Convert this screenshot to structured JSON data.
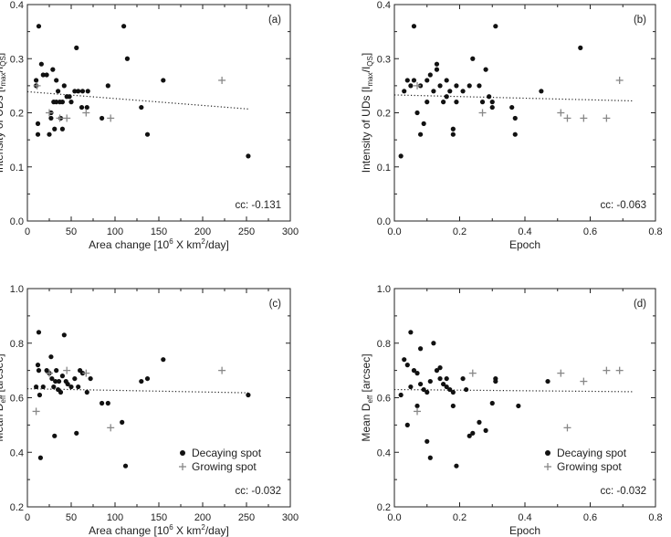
{
  "chart_data": [
    {
      "type": "scatter",
      "panel_label": "(a)",
      "xlabel_pre": "Area change [10",
      "xlabel_sup1": "6",
      "xlabel_mid": " X km",
      "xlabel_sup2": "2",
      "xlabel_post": "/day]",
      "ylabel_pre": "Intensity of UDs [I",
      "ylabel_sub1": "max",
      "ylabel_mid": "/I",
      "ylabel_sub2": "QS",
      "ylabel_post": "]",
      "xlim": [
        0,
        300
      ],
      "ylim": [
        0.0,
        0.4
      ],
      "xticks": [
        "0",
        "50",
        "100",
        "150",
        "200",
        "250",
        "300"
      ],
      "yticks": [
        "0.0",
        "0.1",
        "0.2",
        "0.3",
        "0.4"
      ],
      "cc": "cc: -0.131",
      "fit": {
        "x": [
          0,
          252
        ],
        "y": [
          0.239,
          0.207
        ]
      },
      "decaying": [
        [
          10,
          0.26
        ],
        [
          10,
          0.25
        ],
        [
          13,
          0.36
        ],
        [
          12,
          0.18
        ],
        [
          12,
          0.16
        ],
        [
          16,
          0.29
        ],
        [
          18,
          0.27
        ],
        [
          22,
          0.27
        ],
        [
          25,
          0.16
        ],
        [
          27,
          0.2
        ],
        [
          27,
          0.19
        ],
        [
          29,
          0.28
        ],
        [
          30,
          0.22
        ],
        [
          31,
          0.17
        ],
        [
          33,
          0.26
        ],
        [
          33,
          0.22
        ],
        [
          35,
          0.24
        ],
        [
          37,
          0.22
        ],
        [
          38,
          0.19
        ],
        [
          40,
          0.22
        ],
        [
          40,
          0.17
        ],
        [
          42,
          0.25
        ],
        [
          45,
          0.23
        ],
        [
          48,
          0.23
        ],
        [
          50,
          0.22
        ],
        [
          54,
          0.24
        ],
        [
          56,
          0.32
        ],
        [
          58,
          0.24
        ],
        [
          62,
          0.21
        ],
        [
          63,
          0.24
        ],
        [
          68,
          0.21
        ],
        [
          69,
          0.24
        ],
        [
          85,
          0.19
        ],
        [
          92,
          0.25
        ],
        [
          110,
          0.36
        ],
        [
          114,
          0.3
        ],
        [
          130,
          0.21
        ],
        [
          137,
          0.16
        ],
        [
          155,
          0.26
        ],
        [
          252,
          0.12
        ]
      ],
      "growing": [
        [
          11,
          0.25
        ],
        [
          25,
          0.2
        ],
        [
          37,
          0.19
        ],
        [
          45,
          0.19
        ],
        [
          67,
          0.2
        ],
        [
          95,
          0.19
        ],
        [
          222,
          0.26
        ]
      ]
    },
    {
      "type": "scatter",
      "panel_label": "(b)",
      "xlabel": "Epoch",
      "ylabel_pre": "Intensity of UDs [I",
      "ylabel_sub1": "max",
      "ylabel_mid": "/I",
      "ylabel_sub2": "QS",
      "ylabel_post": "]",
      "xlim": [
        0.0,
        0.8
      ],
      "ylim": [
        0.0,
        0.4
      ],
      "xticks": [
        "0.0",
        "0.2",
        "0.4",
        "0.6",
        "0.8"
      ],
      "yticks": [
        "0.0",
        "0.1",
        "0.2",
        "0.3",
        "0.4"
      ],
      "cc": "cc: -0.063",
      "fit": {
        "x": [
          0.0,
          0.73
        ],
        "y": [
          0.233,
          0.222
        ]
      },
      "decaying": [
        [
          0.02,
          0.12
        ],
        [
          0.03,
          0.24
        ],
        [
          0.04,
          0.26
        ],
        [
          0.05,
          0.25
        ],
        [
          0.06,
          0.36
        ],
        [
          0.06,
          0.26
        ],
        [
          0.07,
          0.2
        ],
        [
          0.08,
          0.16
        ],
        [
          0.08,
          0.25
        ],
        [
          0.09,
          0.18
        ],
        [
          0.1,
          0.26
        ],
        [
          0.1,
          0.22
        ],
        [
          0.11,
          0.27
        ],
        [
          0.12,
          0.24
        ],
        [
          0.13,
          0.29
        ],
        [
          0.13,
          0.28
        ],
        [
          0.14,
          0.25
        ],
        [
          0.15,
          0.22
        ],
        [
          0.16,
          0.26
        ],
        [
          0.16,
          0.23
        ],
        [
          0.17,
          0.24
        ],
        [
          0.18,
          0.17
        ],
        [
          0.18,
          0.16
        ],
        [
          0.19,
          0.22
        ],
        [
          0.19,
          0.25
        ],
        [
          0.21,
          0.24
        ],
        [
          0.24,
          0.3
        ],
        [
          0.26,
          0.25
        ],
        [
          0.27,
          0.22
        ],
        [
          0.28,
          0.28
        ],
        [
          0.29,
          0.23
        ],
        [
          0.3,
          0.22
        ],
        [
          0.3,
          0.21
        ],
        [
          0.31,
          0.36
        ],
        [
          0.36,
          0.21
        ],
        [
          0.37,
          0.19
        ],
        [
          0.37,
          0.16
        ],
        [
          0.45,
          0.24
        ],
        [
          0.57,
          0.32
        ],
        [
          0.23,
          0.25
        ]
      ],
      "growing": [
        [
          0.07,
          0.25
        ],
        [
          0.27,
          0.2
        ],
        [
          0.51,
          0.2
        ],
        [
          0.53,
          0.19
        ],
        [
          0.58,
          0.19
        ],
        [
          0.65,
          0.19
        ],
        [
          0.69,
          0.26
        ]
      ]
    },
    {
      "type": "scatter",
      "panel_label": "(c)",
      "xlabel_pre": "Area change [10",
      "xlabel_sup1": "6",
      "xlabel_mid": " X km",
      "xlabel_sup2": "2",
      "xlabel_post": "/day]",
      "ylabel_pre": "Mean D",
      "ylabel_sub1": "eff",
      "ylabel_post": " [arcsec]",
      "xlim": [
        0,
        300
      ],
      "ylim": [
        0.2,
        1.0
      ],
      "xticks": [
        "0",
        "50",
        "100",
        "150",
        "200",
        "250",
        "300"
      ],
      "yticks": [
        "0.2",
        "0.4",
        "0.6",
        "0.8",
        "1.0"
      ],
      "cc": "cc: -0.032",
      "legend": {
        "decaying": "Decaying spot",
        "growing": "Growing spot"
      },
      "fit": {
        "x": [
          0,
          252
        ],
        "y": [
          0.633,
          0.618
        ]
      },
      "decaying": [
        [
          10,
          0.64
        ],
        [
          12,
          0.72
        ],
        [
          13,
          0.84
        ],
        [
          13,
          0.7
        ],
        [
          14,
          0.61
        ],
        [
          15,
          0.38
        ],
        [
          18,
          0.64
        ],
        [
          22,
          0.7
        ],
        [
          25,
          0.69
        ],
        [
          27,
          0.75
        ],
        [
          28,
          0.67
        ],
        [
          30,
          0.64
        ],
        [
          31,
          0.46
        ],
        [
          32,
          0.66
        ],
        [
          33,
          0.7
        ],
        [
          35,
          0.63
        ],
        [
          36,
          0.66
        ],
        [
          38,
          0.62
        ],
        [
          40,
          0.68
        ],
        [
          42,
          0.83
        ],
        [
          44,
          0.66
        ],
        [
          46,
          0.65
        ],
        [
          50,
          0.64
        ],
        [
          54,
          0.67
        ],
        [
          56,
          0.47
        ],
        [
          58,
          0.64
        ],
        [
          60,
          0.7
        ],
        [
          63,
          0.69
        ],
        [
          68,
          0.62
        ],
        [
          72,
          0.67
        ],
        [
          85,
          0.58
        ],
        [
          92,
          0.58
        ],
        [
          108,
          0.51
        ],
        [
          112,
          0.35
        ],
        [
          130,
          0.66
        ],
        [
          137,
          0.67
        ],
        [
          155,
          0.74
        ],
        [
          252,
          0.61
        ]
      ],
      "growing": [
        [
          10,
          0.55
        ],
        [
          25,
          0.69
        ],
        [
          45,
          0.7
        ],
        [
          67,
          0.69
        ],
        [
          95,
          0.49
        ],
        [
          222,
          0.7
        ]
      ]
    },
    {
      "type": "scatter",
      "panel_label": "(d)",
      "xlabel": "Epoch",
      "ylabel_pre": "Mean D",
      "ylabel_sub1": "eff",
      "ylabel_post": " [arcsec]",
      "xlim": [
        0.0,
        0.8
      ],
      "ylim": [
        0.2,
        1.0
      ],
      "xticks": [
        "0.0",
        "0.2",
        "0.4",
        "0.6",
        "0.8"
      ],
      "yticks": [
        "0.2",
        "0.4",
        "0.6",
        "0.8",
        "1.0"
      ],
      "cc": "cc: -0.032",
      "legend": {
        "decaying": "Decaying spot",
        "growing": "Growing spot"
      },
      "fit": {
        "x": [
          0.0,
          0.73
        ],
        "y": [
          0.63,
          0.622
        ]
      },
      "decaying": [
        [
          0.02,
          0.61
        ],
        [
          0.03,
          0.74
        ],
        [
          0.04,
          0.5
        ],
        [
          0.04,
          0.72
        ],
        [
          0.05,
          0.84
        ],
        [
          0.05,
          0.64
        ],
        [
          0.06,
          0.7
        ],
        [
          0.07,
          0.69
        ],
        [
          0.07,
          0.57
        ],
        [
          0.08,
          0.65
        ],
        [
          0.08,
          0.78
        ],
        [
          0.09,
          0.63
        ],
        [
          0.1,
          0.44
        ],
        [
          0.1,
          0.62
        ],
        [
          0.11,
          0.66
        ],
        [
          0.11,
          0.38
        ],
        [
          0.12,
          0.8
        ],
        [
          0.13,
          0.7
        ],
        [
          0.14,
          0.71
        ],
        [
          0.14,
          0.67
        ],
        [
          0.15,
          0.65
        ],
        [
          0.16,
          0.64
        ],
        [
          0.16,
          0.67
        ],
        [
          0.17,
          0.63
        ],
        [
          0.18,
          0.62
        ],
        [
          0.18,
          0.57
        ],
        [
          0.19,
          0.35
        ],
        [
          0.21,
          0.67
        ],
        [
          0.22,
          0.63
        ],
        [
          0.23,
          0.46
        ],
        [
          0.24,
          0.47
        ],
        [
          0.26,
          0.51
        ],
        [
          0.28,
          0.48
        ],
        [
          0.3,
          0.58
        ],
        [
          0.31,
          0.67
        ],
        [
          0.31,
          0.66
        ],
        [
          0.38,
          0.57
        ],
        [
          0.47,
          0.66
        ]
      ],
      "growing": [
        [
          0.07,
          0.55
        ],
        [
          0.24,
          0.69
        ],
        [
          0.51,
          0.69
        ],
        [
          0.53,
          0.49
        ],
        [
          0.58,
          0.66
        ],
        [
          0.65,
          0.7
        ],
        [
          0.69,
          0.7
        ]
      ]
    }
  ]
}
